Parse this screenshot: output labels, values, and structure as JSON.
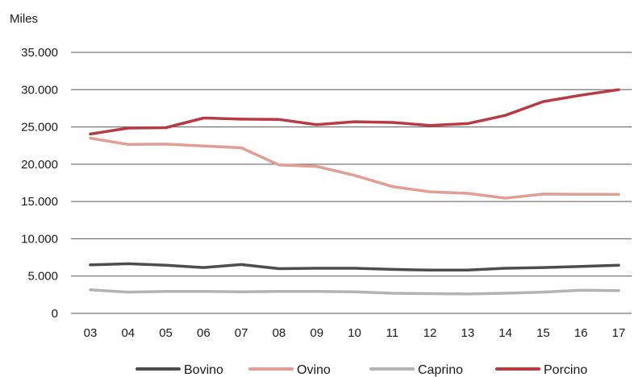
{
  "chart_data": {
    "type": "line",
    "title": "",
    "unit_label": "Miles",
    "xlabel": "",
    "ylabel": "",
    "categories": [
      "03",
      "04",
      "05",
      "06",
      "07",
      "08",
      "09",
      "10",
      "11",
      "12",
      "13",
      "14",
      "15",
      "16",
      "17"
    ],
    "ylim": [
      0,
      35000
    ],
    "yticks": [
      0,
      5000,
      10000,
      15000,
      20000,
      25000,
      30000,
      35000
    ],
    "ytick_labels": [
      "0",
      "5.000",
      "10.000",
      "15.000",
      "20.000",
      "25.000",
      "30.000",
      "35.000"
    ],
    "grid": true,
    "legend_position": "bottom",
    "series": [
      {
        "name": "Bovino",
        "color": "#4d4d4d",
        "values": [
          6500,
          6650,
          6450,
          6150,
          6550,
          6000,
          6050,
          6050,
          5900,
          5800,
          5800,
          6050,
          6150,
          6300,
          6450
        ]
      },
      {
        "name": "Ovino",
        "color": "#e09e95",
        "values": [
          23500,
          22650,
          22700,
          22450,
          22200,
          19900,
          19700,
          18500,
          17000,
          16300,
          16100,
          15450,
          16000,
          15950,
          15950
        ]
      },
      {
        "name": "Caprino",
        "color": "#b3b3b3",
        "values": [
          3150,
          2850,
          2950,
          2950,
          2900,
          2950,
          2950,
          2900,
          2700,
          2650,
          2600,
          2700,
          2850,
          3100,
          3050
        ]
      },
      {
        "name": "Porcino",
        "color": "#b83a45",
        "values": [
          24050,
          24850,
          24900,
          26200,
          26050,
          26000,
          25300,
          25700,
          25600,
          25200,
          25450,
          26550,
          28400,
          29250,
          30000
        ]
      }
    ]
  }
}
